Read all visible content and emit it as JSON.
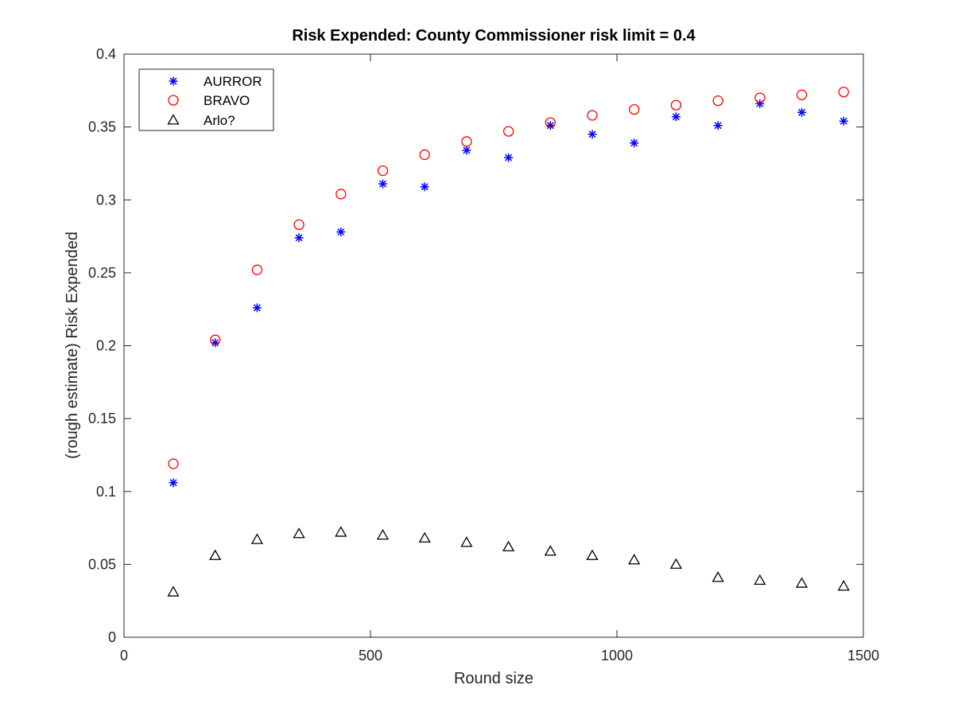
{
  "chart_data": {
    "type": "scatter",
    "title": "Risk Expended: County Commissioner risk limit = 0.4",
    "xlabel": "Round size",
    "ylabel": "(rough estimate) Risk Expended",
    "xlim": [
      0,
      1500
    ],
    "ylim": [
      0,
      0.4
    ],
    "xticks": [
      0,
      500,
      1000,
      1500
    ],
    "xtick_labels": [
      "0",
      "500",
      "1000",
      "1500"
    ],
    "yticks": [
      0,
      0.05,
      0.1,
      0.15,
      0.2,
      0.25,
      0.3,
      0.35,
      0.4
    ],
    "ytick_labels": [
      "0",
      "0.05",
      "0.1",
      "0.15",
      "0.2",
      "0.25",
      "0.3",
      "0.35",
      "0.4"
    ],
    "grid": false,
    "legend_position": "top-left",
    "x": [
      100,
      185,
      270,
      355,
      440,
      525,
      610,
      695,
      780,
      865,
      950,
      1035,
      1120,
      1205,
      1290,
      1375,
      1460
    ],
    "series": [
      {
        "name": "AURROR",
        "marker": "asterisk",
        "color": "#0000ff",
        "values": [
          0.106,
          0.202,
          0.226,
          0.274,
          0.278,
          0.311,
          0.309,
          0.334,
          0.329,
          0.351,
          0.345,
          0.339,
          0.357,
          0.351,
          0.366,
          0.36,
          0.354
        ]
      },
      {
        "name": "BRAVO",
        "marker": "circle",
        "color": "#ff0000",
        "values": [
          0.119,
          0.204,
          0.252,
          0.283,
          0.304,
          0.32,
          0.331,
          0.34,
          0.347,
          0.353,
          0.358,
          0.362,
          0.365,
          0.368,
          0.37,
          0.372,
          0.374
        ]
      },
      {
        "name": "Arlo?",
        "marker": "triangle",
        "color": "#000000",
        "values": [
          0.031,
          0.056,
          0.067,
          0.071,
          0.072,
          0.07,
          0.068,
          0.065,
          0.062,
          0.059,
          0.056,
          0.053,
          0.05,
          0.041,
          0.039,
          0.037,
          0.035
        ]
      }
    ]
  }
}
